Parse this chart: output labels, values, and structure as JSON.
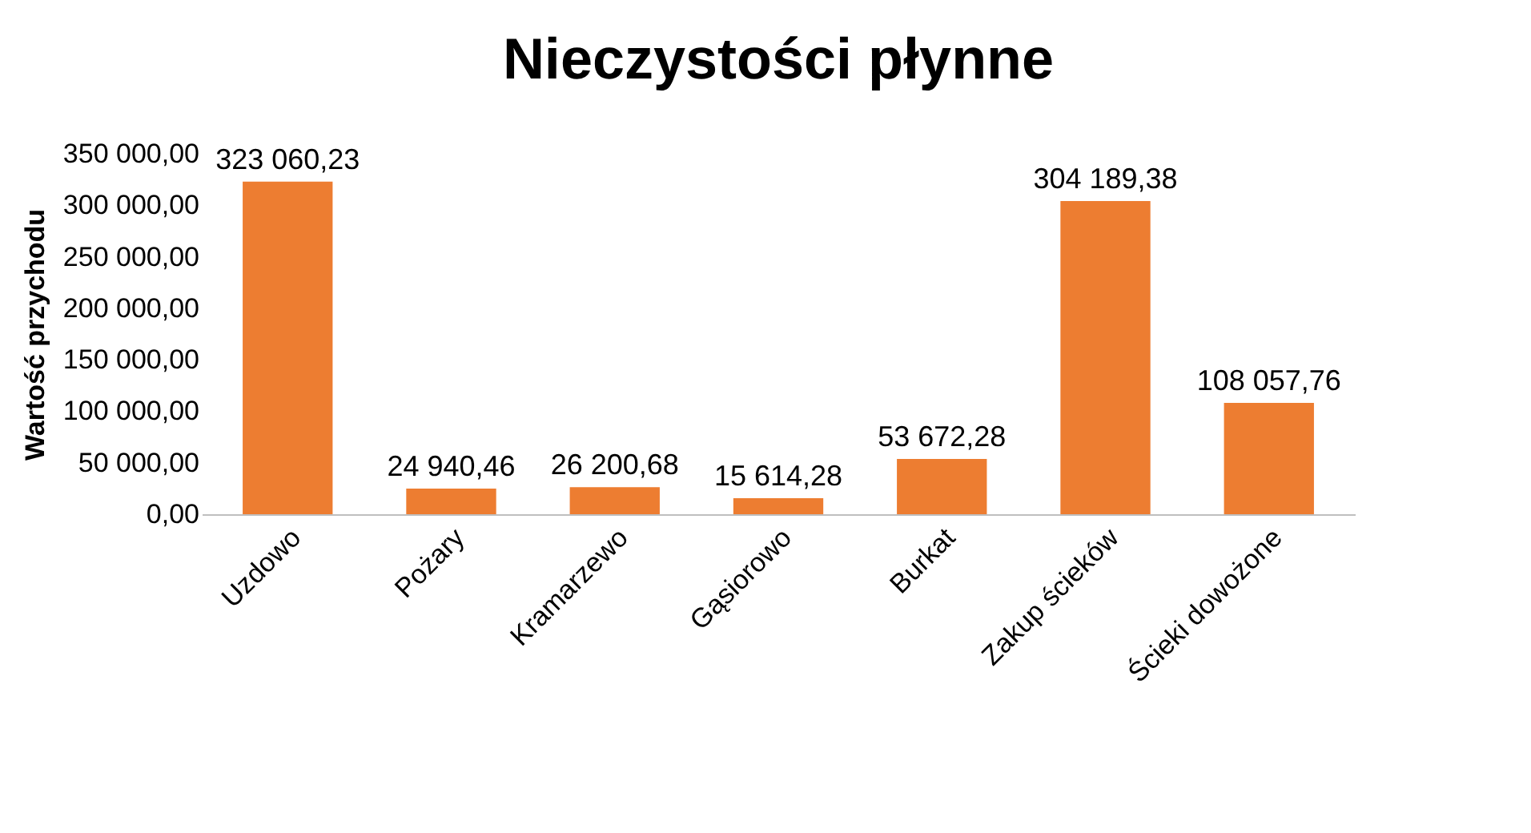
{
  "chart_data": {
    "type": "bar",
    "title": "Nieczystości płynne",
    "ylabel": "Wartość przychodu",
    "categories": [
      "Uzdowo",
      "Pożary",
      "Kramarzewo",
      "Gąsiorowo",
      "Burkat",
      "Zakup ścieków",
      "Ścieki dowożone"
    ],
    "values": [
      323060.23,
      24940.46,
      26200.68,
      15614.28,
      53672.28,
      304189.38,
      108057.76
    ],
    "value_labels": [
      "323 060,23",
      "24 940,46",
      "26 200,68",
      "15 614,28",
      "53 672,28",
      "304 189,38",
      "108 057,76"
    ],
    "color": "#ed7d31",
    "ylim": [
      0,
      350000
    ],
    "yticks": [
      {
        "value": 0,
        "label": "0,00"
      },
      {
        "value": 50000,
        "label": "50 000,00"
      },
      {
        "value": 100000,
        "label": "100 000,00"
      },
      {
        "value": 150000,
        "label": "150 000,00"
      },
      {
        "value": 200000,
        "label": "200 000,00"
      },
      {
        "value": 250000,
        "label": "250 000,00"
      },
      {
        "value": 300000,
        "label": "300 000,00"
      },
      {
        "value": 350000,
        "label": "350 000,00"
      }
    ],
    "grid": false
  }
}
